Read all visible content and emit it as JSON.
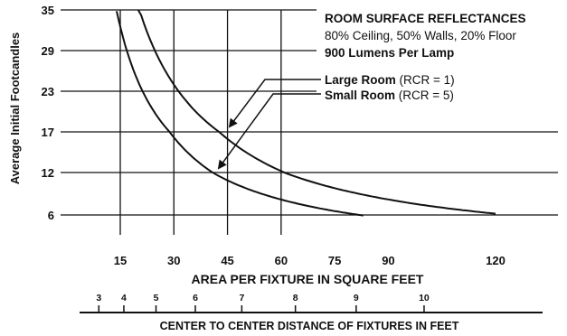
{
  "chart_data": {
    "type": "line",
    "ylabel": "Average Initial Footcandles",
    "xlabel": "AREA PER FIXTURE IN SQUARE FEET",
    "x_ticks": [
      15,
      30,
      45,
      60,
      75,
      90,
      120
    ],
    "y_ticks": [
      6,
      12,
      17,
      23,
      29,
      35
    ],
    "xlim": [
      7,
      125
    ],
    "secondary_axis": {
      "label": "CENTER TO CENTER DISTANCE OF FIXTURES IN FEET",
      "ticks": [
        3,
        4,
        5,
        6,
        7,
        8,
        9,
        10
      ]
    },
    "annotations": {
      "heading": "ROOM SURFACE REFLECTANCES",
      "line1": "80% Ceiling, 50% Walls, 20% Floor",
      "line2": "900 Lumens Per Lamp",
      "large_name": "Large Room",
      "large_rcr": "(RCR = 1)",
      "small_name": "Small Room",
      "small_rcr": "(RCR = 5)"
    },
    "series": [
      {
        "name": "Large Room (RCR = 1)",
        "x": [
          20,
          30,
          45,
          60,
          75,
          90,
          105,
          120
        ],
        "y": [
          35,
          24,
          16.5,
          12.3,
          9.8,
          8.2,
          7,
          6.1
        ]
      },
      {
        "name": "Small Room (RCR = 5)",
        "x": [
          14,
          20,
          30,
          40,
          50,
          60,
          70,
          83
        ],
        "y": [
          35,
          24.4,
          16.3,
          12.2,
          9.8,
          8.1,
          7,
          6
        ]
      }
    ]
  }
}
